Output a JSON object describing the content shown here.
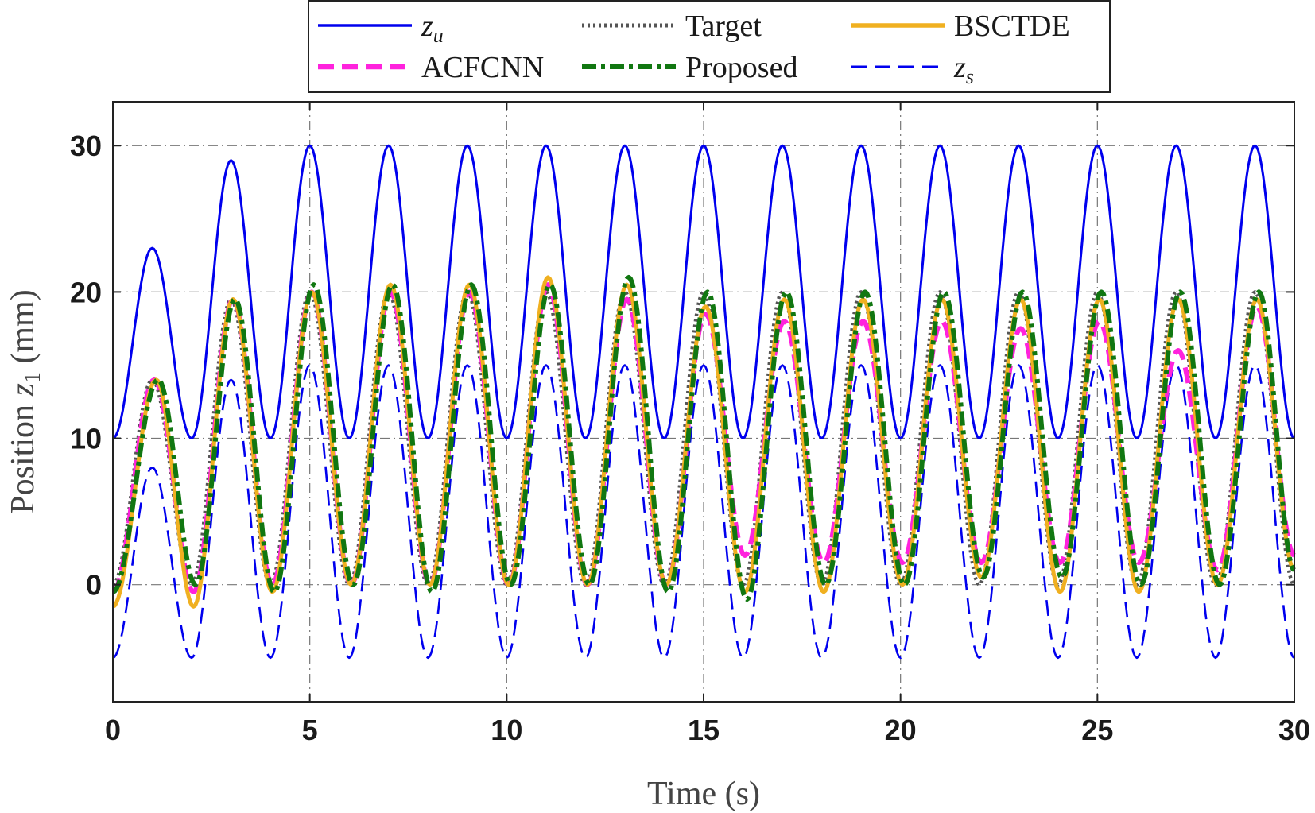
{
  "chart_data": {
    "type": "line",
    "title": "",
    "xlabel": "Time (s)",
    "ylabel_main": "Position ",
    "ylabel_var": "z",
    "ylabel_sub": "1",
    "ylabel_unit": " (mm)",
    "xlim": [
      0,
      30
    ],
    "ylim": [
      -8,
      33
    ],
    "xticks": [
      0,
      5,
      10,
      15,
      20,
      25,
      30
    ],
    "yticks": [
      0,
      10,
      20,
      30
    ],
    "grid": true,
    "legend_position": "top-center",
    "series": [
      {
        "key": "zu",
        "name": "z",
        "sub": "u",
        "color": "#0000ee",
        "style": "solid",
        "description": "upper bound: 10 to 30 mm, period 2 s",
        "x": [
          0,
          1.0,
          2.0,
          3.0,
          4.0,
          5.0,
          6.0,
          7.0,
          8.0,
          9.0,
          10.0,
          11.0,
          12.0,
          13.0,
          14.0,
          15.0,
          16.0,
          17.0,
          18.0,
          19.0,
          20.0,
          21.0,
          22.0,
          23.0,
          24.0,
          25.0,
          26.0,
          27.0,
          28.0,
          29.0,
          30.0
        ],
        "y": [
          10,
          23,
          10,
          29,
          10,
          30,
          10,
          30,
          10,
          30,
          10,
          30,
          10,
          30,
          10,
          30,
          10,
          30,
          10,
          30,
          10,
          30,
          10,
          30,
          10,
          30,
          10,
          30,
          10,
          30,
          10
        ]
      },
      {
        "key": "target",
        "name": "Target",
        "color": "#555555",
        "style": "dotted",
        "x": [
          0,
          1.0,
          2.0,
          3.0,
          4.0,
          5.0,
          6.0,
          7.0,
          8.0,
          9.0,
          10.0,
          11.0,
          12.0,
          13.0,
          14.0,
          15.0,
          16.0,
          17.0,
          18.0,
          19.0,
          20.0,
          21.0,
          22.0,
          23.0,
          24.0,
          25.0,
          26.0,
          27.0,
          28.0,
          29.0,
          30.0
        ],
        "y": [
          0,
          14,
          0,
          19.5,
          0,
          20,
          0,
          20,
          0,
          20,
          0,
          20,
          0,
          20,
          0,
          20,
          0,
          20,
          0,
          20,
          0,
          20,
          0,
          20,
          0,
          20,
          0,
          20,
          0,
          20,
          0
        ]
      },
      {
        "key": "bsctde",
        "name": "BSCTDE",
        "color": "#f0b020",
        "style": "solid",
        "x": [
          0,
          1.1,
          2.05,
          3.05,
          4.05,
          5.05,
          6.05,
          7.05,
          8.05,
          9.05,
          10.05,
          11.05,
          12.05,
          13.05,
          14.05,
          15.05,
          16.05,
          17.05,
          18.05,
          19.05,
          20.05,
          21.05,
          22.05,
          23.05,
          24.05,
          25.05,
          26.05,
          27.05,
          28.05,
          29.05,
          30.0
        ],
        "y": [
          -1.5,
          14,
          -1.5,
          19.5,
          -0.5,
          20,
          0,
          20.5,
          0,
          20.5,
          0,
          21,
          0,
          20.5,
          0,
          19,
          -0.5,
          19.5,
          -0.5,
          19.5,
          0,
          19.5,
          0.5,
          19.5,
          -0.5,
          19.5,
          -0.5,
          19.5,
          0,
          19.5,
          1
        ]
      },
      {
        "key": "acfcnn",
        "name": "ACFCNN",
        "color": "#ff22dd",
        "style": "dashed",
        "x": [
          0,
          1.05,
          2.05,
          3.05,
          4.05,
          5.05,
          6.05,
          7.05,
          8.05,
          9.05,
          10.05,
          11.05,
          12.05,
          13.05,
          14.05,
          15.05,
          16.05,
          17.05,
          18.05,
          19.05,
          20.05,
          21.05,
          22.05,
          23.05,
          24.05,
          25.05,
          26.05,
          27.05,
          28.05,
          29.05,
          30.0
        ],
        "y": [
          -0.5,
          14,
          -0.5,
          19.5,
          0,
          20,
          0,
          20,
          0,
          20,
          0,
          20.5,
          0,
          19.5,
          0,
          18.5,
          2,
          18,
          1.5,
          18,
          1.5,
          18,
          1.5,
          17.5,
          1.5,
          18,
          1.5,
          16,
          1,
          19,
          2
        ]
      },
      {
        "key": "proposed",
        "name": "Proposed",
        "color": "#117711",
        "style": "dashdot",
        "x": [
          0,
          1.15,
          2.1,
          3.1,
          4.1,
          5.1,
          6.1,
          7.1,
          8.1,
          9.1,
          10.1,
          11.1,
          12.1,
          13.1,
          14.1,
          15.1,
          16.1,
          17.1,
          18.1,
          19.1,
          20.1,
          21.1,
          22.1,
          23.1,
          24.1,
          25.1,
          26.1,
          27.1,
          28.1,
          29.1,
          30.0
        ],
        "y": [
          -0.5,
          14,
          0,
          19.5,
          -0.5,
          20.5,
          0,
          20.5,
          -0.5,
          20.5,
          0,
          20.5,
          0,
          21,
          -0.5,
          20,
          -1,
          20,
          0,
          20,
          0,
          20,
          0.5,
          20,
          0.5,
          20,
          0,
          20,
          0,
          20,
          1
        ]
      },
      {
        "key": "zs",
        "name": "z",
        "sub": "s",
        "color": "#0000ee",
        "style": "dashed",
        "description": "lower bound: -5 to 15 mm, period 2 s",
        "x": [
          0,
          1.0,
          2.0,
          3.0,
          4.0,
          5.0,
          6.0,
          7.0,
          8.0,
          9.0,
          10.0,
          11.0,
          12.0,
          13.0,
          14.0,
          15.0,
          16.0,
          17.0,
          18.0,
          19.0,
          20.0,
          21.0,
          22.0,
          23.0,
          24.0,
          25.0,
          26.0,
          27.0,
          28.0,
          29.0,
          30.0
        ],
        "y": [
          -5,
          8,
          -5,
          14,
          -5,
          15,
          -5,
          15,
          -5,
          15,
          -5,
          15,
          -5,
          15,
          -5,
          15,
          -5,
          15,
          -5,
          15,
          -5,
          15,
          -5,
          15,
          -5,
          15,
          -5,
          15,
          -5,
          15,
          -5
        ]
      }
    ],
    "legend_order": [
      "zu",
      "target",
      "bsctde",
      "acfcnn",
      "proposed",
      "zs"
    ]
  }
}
